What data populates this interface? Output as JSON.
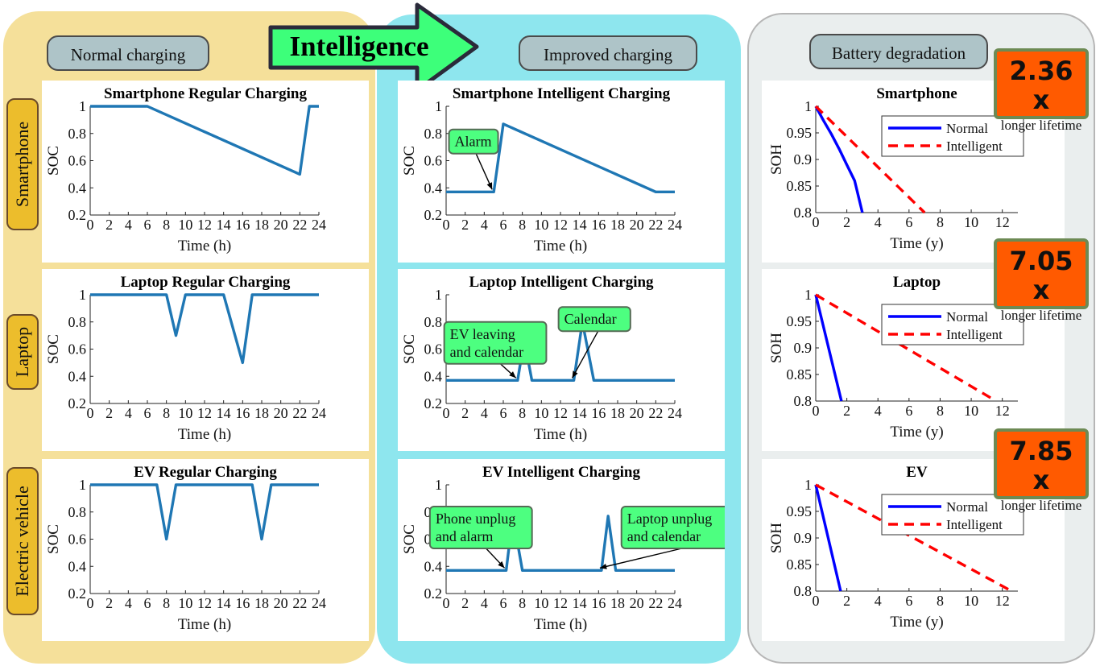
{
  "headers": {
    "normal": "Normal charging",
    "intelligence": "Intelligence",
    "improved": "Improved charging",
    "degradation": "Battery degradation"
  },
  "row_labels": [
    "Smartphone",
    "Laptop",
    "Electric vehicle"
  ],
  "badges": [
    {
      "value": "2.36 x",
      "text": "longer lifetime"
    },
    {
      "value": "7.05 x",
      "text": "longer lifetime"
    },
    {
      "value": "7.85 x",
      "text": "longer lifetime"
    }
  ],
  "colors": {
    "soc_line": "#1f77b4",
    "normal_line": "#0000ff",
    "intelligent_line": "#ff0000",
    "callout_fill": "#4dff80",
    "badge_fill": "#ff5a00"
  },
  "chart_data": [
    {
      "id": "sp-regular",
      "type": "line",
      "title": "Smartphone Regular Charging",
      "xlabel": "Time (h)",
      "ylabel": "SOC",
      "xlim": [
        0,
        24
      ],
      "ylim": [
        0.2,
        1
      ],
      "xticks": [
        "0",
        "2",
        "4",
        "6",
        "8",
        "10",
        "12",
        "14",
        "16",
        "18",
        "20",
        "22",
        "24"
      ],
      "yticks": [
        "0.2",
        "0.4",
        "0.6",
        "0.8",
        "1"
      ],
      "series": [
        {
          "x": [
            0,
            6,
            22,
            23,
            24
          ],
          "y": [
            1,
            1,
            0.5,
            1,
            1
          ]
        }
      ],
      "annotations": []
    },
    {
      "id": "sp-intelligent",
      "type": "line",
      "title": "Smartphone Intelligent Charging",
      "xlabel": "Time (h)",
      "ylabel": "SOC",
      "xlim": [
        0,
        24
      ],
      "ylim": [
        0.2,
        1
      ],
      "xticks": [
        "0",
        "2",
        "4",
        "6",
        "8",
        "10",
        "12",
        "14",
        "16",
        "18",
        "20",
        "22",
        "24"
      ],
      "yticks": [
        "0.2",
        "0.4",
        "0.6",
        "0.8",
        "1"
      ],
      "series": [
        {
          "x": [
            0,
            5,
            6,
            22,
            24
          ],
          "y": [
            0.37,
            0.37,
            0.87,
            0.37,
            0.37
          ]
        }
      ],
      "annotations": [
        {
          "text": "Alarm",
          "tx": 0.3,
          "ty": 0.83,
          "ax": 5,
          "ay": 0.37
        }
      ]
    },
    {
      "id": "lt-regular",
      "type": "line",
      "title": "Laptop Regular Charging",
      "xlabel": "Time (h)",
      "ylabel": "SOC",
      "xlim": [
        0,
        24
      ],
      "ylim": [
        0.2,
        1
      ],
      "xticks": [
        "0",
        "2",
        "4",
        "6",
        "8",
        "10",
        "12",
        "14",
        "16",
        "18",
        "20",
        "22",
        "24"
      ],
      "yticks": [
        "0.2",
        "0.4",
        "0.6",
        "0.8",
        "1"
      ],
      "series": [
        {
          "x": [
            0,
            8,
            9,
            10,
            14,
            16,
            17,
            24
          ],
          "y": [
            1,
            1,
            0.7,
            1,
            1,
            0.5,
            1,
            1
          ]
        }
      ],
      "annotations": []
    },
    {
      "id": "lt-intelligent",
      "type": "line",
      "title": "Laptop Intelligent Charging",
      "xlabel": "Time (h)",
      "ylabel": "SOC",
      "xlim": [
        0,
        24
      ],
      "ylim": [
        0.2,
        1
      ],
      "xticks": [
        "0",
        "2",
        "4",
        "6",
        "8",
        "10",
        "12",
        "14",
        "16",
        "18",
        "20",
        "22",
        "24"
      ],
      "yticks": [
        "0.2",
        "0.4",
        "0.6",
        "0.8",
        "1"
      ],
      "series": [
        {
          "x": [
            0,
            7.5,
            8.2,
            9,
            13.4,
            14.3,
            15.5,
            24
          ],
          "y": [
            0.37,
            0.37,
            0.67,
            0.37,
            0.37,
            0.8,
            0.37,
            0.37
          ]
        }
      ],
      "annotations": [
        {
          "text": "EV leaving\nand calendar",
          "tx": -0.2,
          "ty": 0.8,
          "ax": 7.5,
          "ay": 0.37
        },
        {
          "text": "Calendar",
          "tx": 11.8,
          "ty": 0.91,
          "ax": 13.4,
          "ay": 0.37
        }
      ]
    },
    {
      "id": "ev-regular",
      "type": "line",
      "title": "EV Regular Charging",
      "xlabel": "Time (h)",
      "ylabel": "SOC",
      "xlim": [
        0,
        24
      ],
      "ylim": [
        0.2,
        1
      ],
      "xticks": [
        "0",
        "2",
        "4",
        "6",
        "8",
        "10",
        "12",
        "14",
        "16",
        "18",
        "20",
        "22",
        "24"
      ],
      "yticks": [
        "0.2",
        "0.4",
        "0.6",
        "0.8",
        "1"
      ],
      "series": [
        {
          "x": [
            0,
            7,
            8,
            9,
            17,
            18,
            19,
            24
          ],
          "y": [
            1,
            1,
            0.6,
            1,
            1,
            0.6,
            1,
            1
          ]
        }
      ],
      "annotations": []
    },
    {
      "id": "ev-intelligent",
      "type": "line",
      "title": "EV Intelligent Charging",
      "xlabel": "Time (h)",
      "ylabel": "SOC",
      "xlim": [
        0,
        24
      ],
      "ylim": [
        0.2,
        1
      ],
      "xticks": [
        "0",
        "2",
        "4",
        "6",
        "8",
        "10",
        "12",
        "14",
        "16",
        "18",
        "20",
        "22",
        "24"
      ],
      "yticks": [
        "0.2",
        "0.4",
        "0.6",
        "0.8",
        "1"
      ],
      "series": [
        {
          "x": [
            0,
            6.3,
            7,
            8,
            16.3,
            17,
            17.8,
            24
          ],
          "y": [
            0.37,
            0.37,
            0.77,
            0.37,
            0.37,
            0.77,
            0.37,
            0.37
          ]
        }
      ],
      "annotations": [
        {
          "text": "Phone unplug\nand alarm",
          "tx": -1.7,
          "ty": 0.84,
          "ax": 6.3,
          "ay": 0.37
        },
        {
          "text": "Laptop unplug\nand calendar",
          "tx": 18.4,
          "ty": 0.84,
          "ax": 16.3,
          "ay": 0.37
        }
      ]
    },
    {
      "id": "sp-soh",
      "type": "line",
      "title": "Smartphone",
      "xlabel": "Time (y)",
      "ylabel": "SOH",
      "xlim": [
        0,
        13
      ],
      "ylim": [
        0.8,
        1
      ],
      "xticks": [
        "0",
        "2",
        "4",
        "6",
        "8",
        "10",
        "12"
      ],
      "yticks": [
        "0.8",
        "0.85",
        "0.9",
        "0.95",
        "1"
      ],
      "series": [
        {
          "name": "Normal",
          "dashed": false,
          "x": [
            0,
            0.5,
            1,
            1.5,
            2,
            2.5,
            3
          ],
          "y": [
            1,
            0.973,
            0.948,
            0.92,
            0.89,
            0.86,
            0.8
          ]
        },
        {
          "name": "Intelligent",
          "dashed": true,
          "x": [
            0,
            7
          ],
          "y": [
            1,
            0.8
          ]
        }
      ],
      "legend": "top-right"
    },
    {
      "id": "lt-soh",
      "type": "line",
      "title": "Laptop",
      "xlabel": "Time (y)",
      "ylabel": "SOH",
      "xlim": [
        0,
        13
      ],
      "ylim": [
        0.8,
        1
      ],
      "xticks": [
        "0",
        "2",
        "4",
        "6",
        "8",
        "10",
        "12"
      ],
      "yticks": [
        "0.8",
        "0.85",
        "0.9",
        "0.95",
        "1"
      ],
      "series": [
        {
          "name": "Normal",
          "dashed": false,
          "x": [
            0,
            1.65
          ],
          "y": [
            1,
            0.8
          ]
        },
        {
          "name": "Intelligent",
          "dashed": true,
          "x": [
            0,
            11.6
          ],
          "y": [
            1,
            0.8
          ]
        }
      ],
      "legend": "top-right"
    },
    {
      "id": "ev-soh",
      "type": "line",
      "title": "EV",
      "xlabel": "Time (y)",
      "ylabel": "SOH",
      "xlim": [
        0,
        13
      ],
      "ylim": [
        0.8,
        1
      ],
      "xticks": [
        "0",
        "2",
        "4",
        "6",
        "8",
        "10",
        "12"
      ],
      "yticks": [
        "0.8",
        "0.85",
        "0.9",
        "0.95",
        "1"
      ],
      "series": [
        {
          "name": "Normal",
          "dashed": false,
          "x": [
            0,
            1.6
          ],
          "y": [
            1,
            0.8
          ]
        },
        {
          "name": "Intelligent",
          "dashed": true,
          "x": [
            0,
            12.6
          ],
          "y": [
            1,
            0.8
          ]
        }
      ],
      "legend": "top-right"
    }
  ]
}
